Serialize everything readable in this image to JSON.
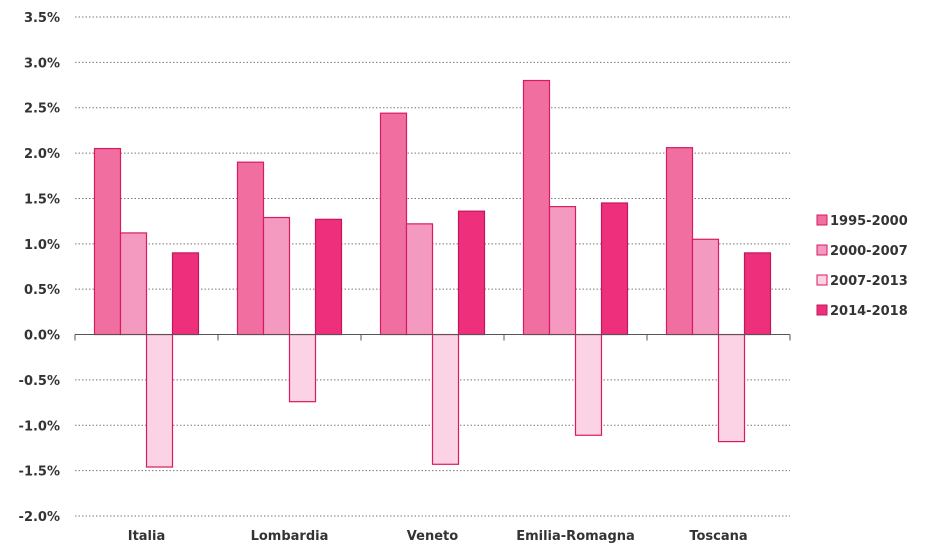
{
  "chart_data": {
    "type": "bar",
    "categories": [
      "Italia",
      "Lombardia",
      "Veneto",
      "Emilia-Romagna",
      "Toscana"
    ],
    "series": [
      {
        "name": "1995-2000",
        "values": [
          2.05,
          1.9,
          2.44,
          2.8,
          2.06
        ],
        "color": "#f06fa0",
        "stroke": "#d81b60"
      },
      {
        "name": "2000-2007",
        "values": [
          1.12,
          1.29,
          1.22,
          1.41,
          1.05
        ],
        "color": "#f49ac0",
        "stroke": "#d81b60"
      },
      {
        "name": "2007-2013",
        "values": [
          -1.46,
          -0.74,
          -1.43,
          -1.11,
          -1.18
        ],
        "color": "#fbd3e4",
        "stroke": "#d81b60"
      },
      {
        "name": "2014-2018",
        "values": [
          0.9,
          1.27,
          1.36,
          1.45,
          0.9
        ],
        "color": "#ee2f7c",
        "stroke": "#c2185b"
      }
    ],
    "ylim": [
      -2.0,
      3.5
    ],
    "yticks": [
      "3.5%",
      "3.0%",
      "2.5%",
      "2.0%",
      "1.5%",
      "1.0%",
      "0.5%",
      "0.0%",
      "-0.5%",
      "-1.0%",
      "-1.5%",
      "-2.0%"
    ],
    "ytick_values": [
      3.5,
      3.0,
      2.5,
      2.0,
      1.5,
      1.0,
      0.5,
      0.0,
      -0.5,
      -1.0,
      -1.5,
      -2.0
    ],
    "grid": true,
    "legend_position": "right",
    "title": "",
    "xlabel": "",
    "ylabel": ""
  }
}
